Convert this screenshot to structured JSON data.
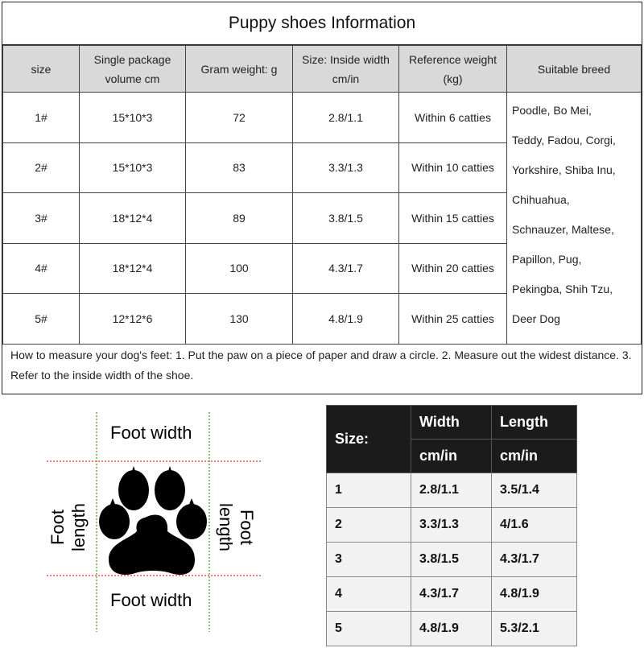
{
  "title": "Puppy shoes Information",
  "headers": [
    "size",
    "Single package volume cm",
    "Gram weight: g",
    "Size: Inside width cm/in",
    "Reference weight (kg)",
    "Suitable breed"
  ],
  "rows": [
    {
      "size": "1#",
      "volume": "15*10*3",
      "gram": "72",
      "width": "2.8/1.1",
      "weight": "Within 6 catties"
    },
    {
      "size": "2#",
      "volume": "15*10*3",
      "gram": "83",
      "width": "3.3/1.3",
      "weight": "Within 10 catties"
    },
    {
      "size": "3#",
      "volume": "18*12*4",
      "gram": "89",
      "width": "3.8/1.5",
      "weight": "Within 15 catties"
    },
    {
      "size": "4#",
      "volume": "18*12*4",
      "gram": "100",
      "width": "4.3/1.7",
      "weight": "Within 20 catties"
    },
    {
      "size": "5#",
      "volume": "12*12*6",
      "gram": "130",
      "width": "4.8/1.9",
      "weight": "Within 25 catties"
    }
  ],
  "breeds": [
    "Poodle, Bo Mei,",
    "Teddy, Fadou, Corgi,",
    "Yorkshire, Shiba Inu,",
    "Chihuahua,",
    "Schnauzer, Maltese,",
    "Papillon, Pug,",
    "Pekingba, Shih Tzu,",
    "Deer Dog"
  ],
  "note": "How to measure your dog's feet: 1. Put the paw on a piece of paper and draw a circle. 2. Measure out the widest distance. 3. Refer to the inside width of the shoe.",
  "diagram": {
    "top": "Foot width",
    "bottom": "Foot width",
    "left": "Foot length",
    "right": "Foot length"
  },
  "size_table": {
    "size_label": "Size:",
    "width_label": "Width",
    "length_label": "Length",
    "unit1": "cm/in",
    "unit2": "cm/in",
    "rows": [
      {
        "size": "1",
        "width": "2.8/1.1",
        "length": "3.5/1.4"
      },
      {
        "size": "2",
        "width": "3.3/1.3",
        "length": "4/1.6"
      },
      {
        "size": "3",
        "width": "3.8/1.5",
        "length": "4.3/1.7"
      },
      {
        "size": "4",
        "width": "4.3/1.7",
        "length": "4.8/1.9"
      },
      {
        "size": "5",
        "width": "4.8/1.9",
        "length": "5.3/2.1"
      }
    ]
  }
}
